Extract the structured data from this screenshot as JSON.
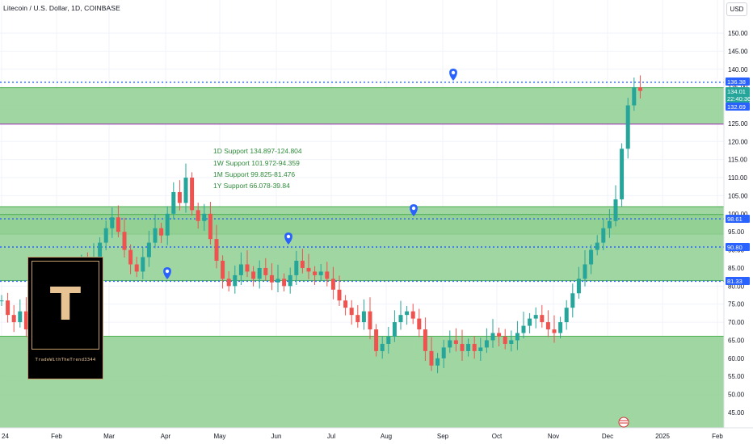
{
  "header": {
    "title": "Litecoin / U.S. Dollar, 1D, COINBASE",
    "currency_button": "USD"
  },
  "colors": {
    "zone_fill": "#8fcf92",
    "zone_border": "#4caf50",
    "dotted_line": "#2962ff",
    "bull": "#26a69a",
    "bear": "#ef5350",
    "tag_blue": "#2962ff",
    "tag_green": "#26a69a",
    "annotation_text": "#2e8b3a",
    "logo_gold": "#e7c393"
  },
  "chart_data": {
    "type": "candlestick",
    "y_ticks": [
      "45.00",
      "50.00",
      "55.00",
      "60.00",
      "65.00",
      "70.00",
      "75.00",
      "80.00",
      "85.00",
      "90.00",
      "95.00",
      "100.00",
      "105.00",
      "110.00",
      "115.00",
      "120.00",
      "125.00",
      "130.00",
      "135.00",
      "140.00",
      "145.00",
      "150.00"
    ],
    "x_ticks": [
      "24",
      "Feb",
      "Mar",
      "Apr",
      "May",
      "Jun",
      "Jul",
      "Aug",
      "Sep",
      "Oct",
      "Nov",
      "Dec",
      "2025",
      "Feb"
    ],
    "price_tags": [
      {
        "label": "136.38",
        "value": 136.38,
        "color": "blue"
      },
      {
        "label": "134.01",
        "value": 134.01,
        "color": "green"
      },
      {
        "label": "22:40:36",
        "value": null,
        "color": "green"
      },
      {
        "label": "132.69",
        "value": 132.69,
        "color": "blue"
      },
      {
        "label": "98.61",
        "value": 98.61,
        "color": "blue"
      },
      {
        "label": "90.80",
        "value": 90.8,
        "color": "blue"
      },
      {
        "label": "81.33",
        "value": 81.33,
        "color": "blue"
      }
    ],
    "zones": [
      {
        "top": 134.9,
        "bottom": 124.8
      },
      {
        "top": 101.97,
        "bottom": 94.36
      },
      {
        "top": 99.8,
        "bottom": 81.5
      },
      {
        "top": 66.1,
        "bottom": 39.84
      }
    ],
    "dotted_levels": [
      136.38,
      98.61,
      90.8,
      81.33
    ],
    "annotations": [
      "1D Support 134.897-124.804",
      "1W Support 101.972-94.359",
      "1M Support 99.825-81.476",
      "1Y Support 66.078-39.84"
    ],
    "candles": [
      {
        "t": 0.0,
        "c": 76
      },
      {
        "t": 0.02,
        "c": 72
      },
      {
        "t": 0.04,
        "c": 70
      },
      {
        "t": 0.06,
        "c": 73
      },
      {
        "t": 0.08,
        "c": 68
      },
      {
        "t": 0.1,
        "c": 70
      },
      {
        "t": 0.12,
        "c": 69
      },
      {
        "t": 0.14,
        "c": 72
      },
      {
        "t": 0.16,
        "c": 71
      },
      {
        "t": 0.18,
        "c": 75
      },
      {
        "t": 0.2,
        "c": 78
      },
      {
        "t": 0.23,
        "c": 82
      },
      {
        "t": 0.26,
        "c": 86
      },
      {
        "t": 0.28,
        "c": 84
      },
      {
        "t": 0.3,
        "c": 88
      },
      {
        "t": 0.32,
        "c": 92
      },
      {
        "t": 0.34,
        "c": 96
      },
      {
        "t": 0.36,
        "c": 99
      },
      {
        "t": 0.38,
        "c": 95
      },
      {
        "t": 0.4,
        "c": 90
      },
      {
        "t": 0.42,
        "c": 86
      },
      {
        "t": 0.44,
        "c": 84
      },
      {
        "t": 0.46,
        "c": 88
      },
      {
        "t": 0.48,
        "c": 92
      },
      {
        "t": 0.5,
        "c": 96
      },
      {
        "t": 0.52,
        "c": 94
      },
      {
        "t": 0.54,
        "c": 100
      },
      {
        "t": 0.56,
        "c": 106
      },
      {
        "t": 0.58,
        "c": 103
      },
      {
        "t": 0.6,
        "c": 110
      },
      {
        "t": 0.62,
        "c": 101
      },
      {
        "t": 0.64,
        "c": 98
      },
      {
        "t": 0.66,
        "c": 100
      },
      {
        "t": 0.68,
        "c": 93
      },
      {
        "t": 0.7,
        "c": 87
      },
      {
        "t": 0.72,
        "c": 82
      },
      {
        "t": 0.74,
        "c": 80
      },
      {
        "t": 0.76,
        "c": 83
      },
      {
        "t": 0.78,
        "c": 86
      },
      {
        "t": 0.8,
        "c": 84
      },
      {
        "t": 0.82,
        "c": 82
      },
      {
        "t": 0.84,
        "c": 85
      },
      {
        "t": 0.86,
        "c": 83
      },
      {
        "t": 0.88,
        "c": 81
      },
      {
        "t": 0.9,
        "c": 82
      },
      {
        "t": 0.92,
        "c": 80
      },
      {
        "t": 0.94,
        "c": 83
      },
      {
        "t": 0.96,
        "c": 87
      },
      {
        "t": 0.98,
        "c": 85
      },
      {
        "t": 1.0,
        "c": 84
      },
      {
        "t": 1.02,
        "c": 83
      },
      {
        "t": 1.04,
        "c": 84
      },
      {
        "t": 1.06,
        "c": 82
      },
      {
        "t": 1.08,
        "c": 79
      },
      {
        "t": 1.1,
        "c": 76
      },
      {
        "t": 1.12,
        "c": 74
      },
      {
        "t": 1.14,
        "c": 72
      },
      {
        "t": 1.16,
        "c": 70
      },
      {
        "t": 1.18,
        "c": 73
      },
      {
        "t": 1.2,
        "c": 68
      },
      {
        "t": 1.22,
        "c": 62
      },
      {
        "t": 1.24,
        "c": 64
      },
      {
        "t": 1.26,
        "c": 66
      },
      {
        "t": 1.28,
        "c": 70
      },
      {
        "t": 1.3,
        "c": 72
      },
      {
        "t": 1.32,
        "c": 73
      },
      {
        "t": 1.34,
        "c": 71
      },
      {
        "t": 1.36,
        "c": 68
      },
      {
        "t": 1.38,
        "c": 62
      },
      {
        "t": 1.4,
        "c": 58
      },
      {
        "t": 1.42,
        "c": 60
      },
      {
        "t": 1.44,
        "c": 63
      },
      {
        "t": 1.46,
        "c": 65
      },
      {
        "t": 1.48,
        "c": 64
      },
      {
        "t": 1.5,
        "c": 62
      },
      {
        "t": 1.52,
        "c": 64
      },
      {
        "t": 1.54,
        "c": 62
      },
      {
        "t": 1.56,
        "c": 63
      },
      {
        "t": 1.58,
        "c": 65
      },
      {
        "t": 1.6,
        "c": 67
      },
      {
        "t": 1.62,
        "c": 66
      },
      {
        "t": 1.64,
        "c": 64
      },
      {
        "t": 1.66,
        "c": 65
      },
      {
        "t": 1.68,
        "c": 67
      },
      {
        "t": 1.7,
        "c": 69
      },
      {
        "t": 1.72,
        "c": 71
      },
      {
        "t": 1.74,
        "c": 72
      },
      {
        "t": 1.76,
        "c": 70
      },
      {
        "t": 1.78,
        "c": 68
      },
      {
        "t": 1.8,
        "c": 67
      },
      {
        "t": 1.82,
        "c": 70
      },
      {
        "t": 1.84,
        "c": 74
      },
      {
        "t": 1.86,
        "c": 78
      },
      {
        "t": 1.88,
        "c": 82
      },
      {
        "t": 1.9,
        "c": 86
      },
      {
        "t": 1.92,
        "c": 90
      },
      {
        "t": 1.94,
        "c": 92
      },
      {
        "t": 1.96,
        "c": 96
      },
      {
        "t": 1.98,
        "c": 98
      },
      {
        "t": 2.0,
        "c": 104
      },
      {
        "t": 2.02,
        "c": 118
      },
      {
        "t": 2.04,
        "c": 130
      },
      {
        "t": 2.06,
        "c": 135
      },
      {
        "t": 2.08,
        "c": 134
      }
    ]
  }
}
